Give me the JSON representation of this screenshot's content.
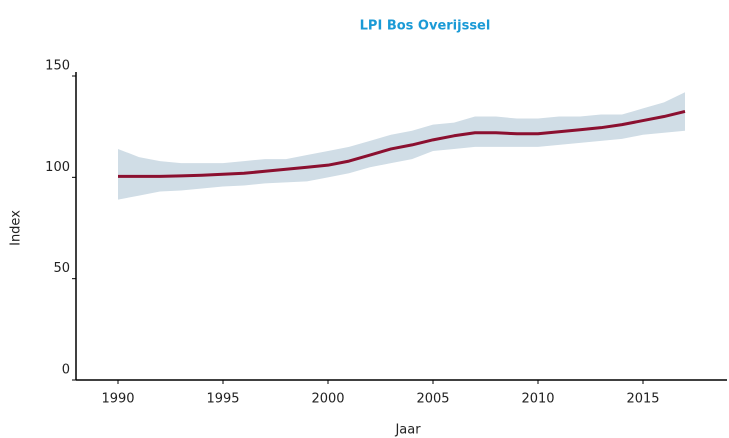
{
  "chart_data": {
    "type": "line",
    "title": "LPI Bos Overijssel",
    "x_label": "Jaar",
    "y_label": "Index",
    "x": [
      1990,
      1991,
      1992,
      1993,
      1994,
      1995,
      1996,
      1997,
      1998,
      1999,
      2000,
      2001,
      2002,
      2003,
      2004,
      2005,
      2006,
      2007,
      2008,
      2009,
      2010,
      2011,
      2012,
      2013,
      2014,
      2015,
      2016,
      2017
    ],
    "values": [
      100.5,
      100.5,
      100.5,
      100.7,
      101,
      101.5,
      102,
      103,
      104,
      105,
      106,
      108,
      111,
      114,
      116,
      118.5,
      120.5,
      122,
      122,
      121.5,
      121.5,
      122.5,
      123.5,
      124.5,
      126,
      128,
      130,
      132.5
    ],
    "band_upper": [
      114,
      110,
      108,
      107,
      107,
      107,
      108,
      109,
      109,
      111,
      113,
      115,
      118,
      121,
      123,
      126,
      127,
      130,
      130,
      129,
      129,
      130,
      130,
      131,
      131,
      134,
      137,
      142
    ],
    "band_lower": [
      89,
      91,
      93,
      93.5,
      94.5,
      95.5,
      96,
      97,
      97.5,
      98,
      100,
      102,
      105,
      107,
      109,
      113,
      114,
      115,
      115,
      115,
      115,
      116,
      117,
      118,
      119,
      121,
      122,
      123
    ],
    "color": "#8b1030",
    "band_color": "#d0dde6",
    "xlim": [
      1988,
      2019
    ],
    "xticks": [
      1990,
      1995,
      2000,
      2005,
      2010,
      2015
    ],
    "ylim": [
      0,
      150
    ],
    "yticks": [
      0,
      50,
      100,
      150
    ]
  }
}
